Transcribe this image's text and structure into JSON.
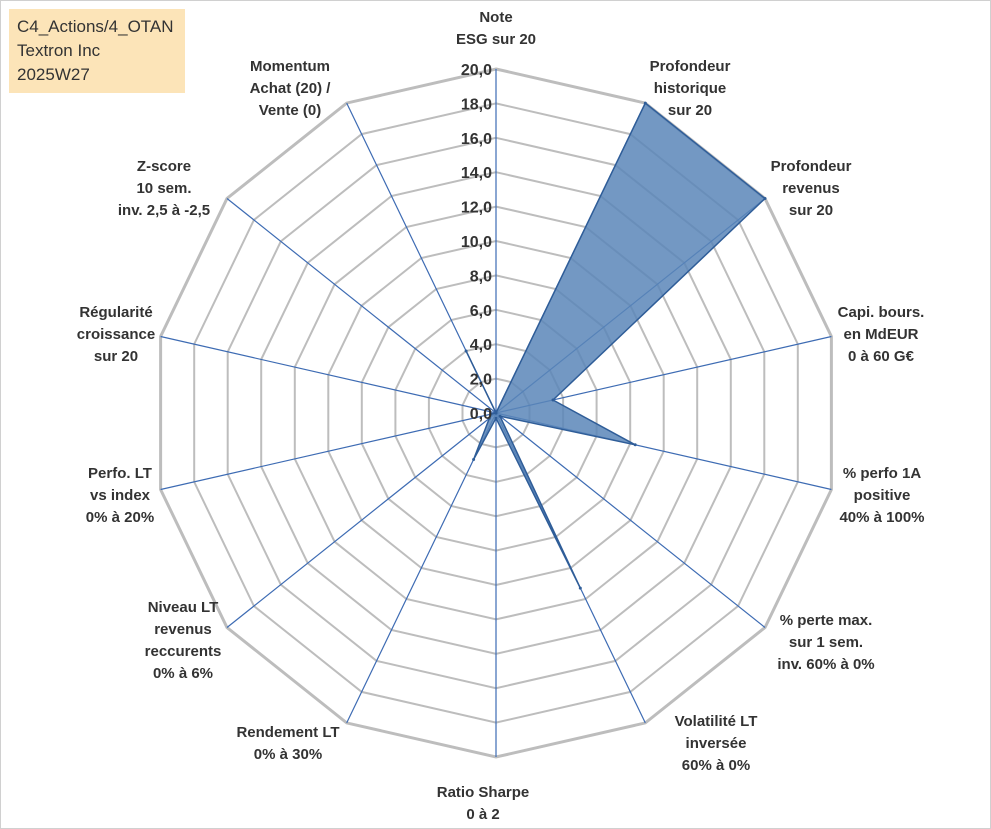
{
  "info": {
    "line1": "C4_Actions/4_OTAN",
    "line2": "Textron Inc",
    "line3": "2025W27"
  },
  "chart_data": {
    "type": "radar",
    "axes": [
      {
        "label": [
          "Note",
          "ESG sur 20"
        ],
        "value": 0
      },
      {
        "label": [
          "Profondeur",
          "historique",
          "sur 20"
        ],
        "value": 20
      },
      {
        "label": [
          "Profondeur",
          "revenus",
          "sur 20"
        ],
        "value": 20
      },
      {
        "label": [
          "Capi. bours.",
          "en MdEUR",
          "0 à 60 G€"
        ],
        "value": 3.4
      },
      {
        "label": [
          "% perfo 1A",
          "positive",
          "40% à 100%"
        ],
        "value": 8.3
      },
      {
        "label": [
          "% perte max.",
          "sur 1 sem.",
          "inv. 60% à 0%"
        ],
        "value": 0.3
      },
      {
        "label": [
          "Volatilité LT",
          "inversée",
          "60% à 0%"
        ],
        "value": 11.3
      },
      {
        "label": [
          "Ratio Sharpe",
          "0 à 2"
        ],
        "value": 0.3
      },
      {
        "label": [
          "Rendement LT",
          "0% à 30%"
        ],
        "value": 3.0
      },
      {
        "label": [
          "Niveau LT",
          "revenus",
          "reccurents",
          "0% à 6%"
        ],
        "value": 0.5
      },
      {
        "label": [
          "Perfo. LT",
          "vs index",
          "0% à 20%"
        ],
        "value": 0.3
      },
      {
        "label": [
          "Régularité",
          "croissance",
          "sur 20"
        ],
        "value": 0
      },
      {
        "label": [
          "Z-score",
          "10 sem.",
          "inv. 2,5 à -2,5"
        ],
        "value": 0
      },
      {
        "label": [
          "Momentum",
          "Achat (20) /",
          "Vente (0)"
        ],
        "value": 4.0
      }
    ],
    "range": [
      0,
      20
    ],
    "ticks": [
      "0,0",
      "2,0",
      "4,0",
      "6,0",
      "8,0",
      "10,0",
      "12,0",
      "14,0",
      "16,0",
      "18,0",
      "20,0"
    ],
    "colors": {
      "fill": "#5b86b8",
      "stroke": "#2f5d98",
      "spoke": "#3d6bb3",
      "grid": "#bdbdbd"
    }
  }
}
